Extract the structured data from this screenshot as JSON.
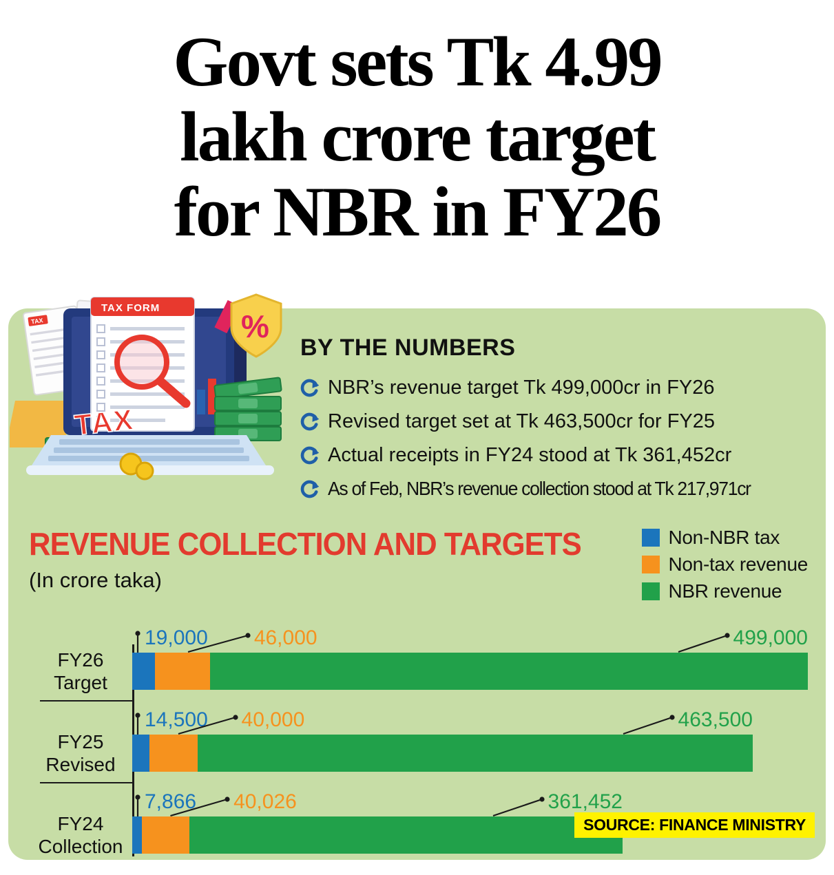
{
  "headline": {
    "lines": [
      "Govt sets Tk 4.99",
      "lakh crore target",
      "for NBR in FY26"
    ]
  },
  "panel": {
    "by_the_numbers": {
      "heading": "BY THE NUMBERS",
      "bullets": [
        "NBR’s revenue target Tk 499,000cr in FY26",
        "Revised target set at Tk 463,500cr for FY25",
        "Actual receipts in FY24 stood at Tk 361,452cr",
        "As of Feb, NBR’s revenue collection stood at Tk 217,971cr"
      ]
    },
    "source_label": "SOURCE: FINANCE MINISTRY"
  },
  "illustration": {
    "doc_tax_label": "TAX",
    "form_title": "TAX FORM",
    "tax_stamp": "TAX",
    "percent_symbol": "%"
  },
  "chart_data": {
    "type": "bar",
    "orientation": "horizontal",
    "stacked": true,
    "title": "REVENUE COLLECTION AND TARGETS",
    "subtitle": "(In crore taka)",
    "unit": "crore taka",
    "legend_position": "top-right",
    "categories": [
      "FY26 Target",
      "FY25 Revised",
      "FY24 Collection"
    ],
    "category_lines": [
      [
        "FY26",
        "Target"
      ],
      [
        "FY25",
        "Revised"
      ],
      [
        "FY24",
        "Collection"
      ]
    ],
    "series": [
      {
        "name": "Non-NBR tax",
        "color": "#1b75bc",
        "values": [
          19000,
          14500,
          7866
        ]
      },
      {
        "name": "Non-tax revenue",
        "color": "#f6921e",
        "values": [
          46000,
          40000,
          40026
        ]
      },
      {
        "name": "NBR revenue",
        "color": "#21a14a",
        "values": [
          499000,
          463500,
          361452
        ]
      }
    ],
    "value_labels": [
      [
        "19,000",
        "46,000",
        "499,000"
      ],
      [
        "14,500",
        "40,000",
        "463,500"
      ],
      [
        "7,866",
        "40,026",
        "361,452"
      ]
    ],
    "xlim": [
      0,
      564000
    ],
    "axis_color": "#1a1a1a"
  },
  "colors": {
    "panel_bg": "#c7dda6",
    "chart_title": "#e23b2e",
    "bullet_icon": "#1f5fa8",
    "source_bg": "#fff200"
  }
}
